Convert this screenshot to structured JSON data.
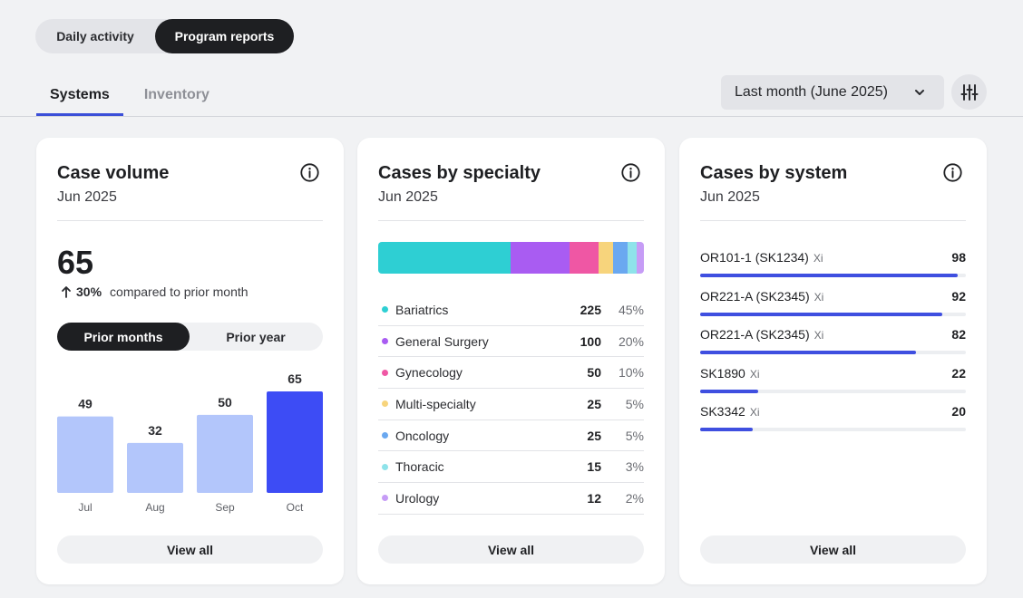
{
  "view_toggle": {
    "options": [
      "Daily activity",
      "Program reports"
    ],
    "selected": "Program reports"
  },
  "tabs": [
    {
      "label": "Systems",
      "active": true
    },
    {
      "label": "Inventory",
      "active": false
    }
  ],
  "date_filter": {
    "value": "Last month (June 2025)"
  },
  "icons": {
    "dropdown": "chevron-down-icon",
    "filter": "sliders-icon",
    "info": "info-icon",
    "delta": "arrow-up-icon"
  },
  "colors": {
    "accent": "#3b4fd8",
    "bar_current": "#3d4cf5",
    "bar_prior": "#b3c6fb"
  },
  "case_volume": {
    "title": "Case volume",
    "subtitle": "Jun 2025",
    "value": "65",
    "delta_pct": "30%",
    "delta_text": "compared to prior month",
    "toggle": {
      "options": [
        "Prior months",
        "Prior year"
      ],
      "selected": "Prior months"
    },
    "view_all": "View all"
  },
  "chart_data": {
    "type": "bar",
    "categories": [
      "Jul",
      "Aug",
      "Sep",
      "Oct"
    ],
    "values": [
      49,
      32,
      50,
      65
    ],
    "highlight_index": 3,
    "ylim": [
      0,
      65
    ]
  },
  "cases_by_specialty": {
    "title": "Cases by specialty",
    "subtitle": "Jun 2025",
    "items": [
      {
        "name": "Bariatrics",
        "count": "225",
        "pct": "45%",
        "color": "#2ecfd3"
      },
      {
        "name": "General Surgery",
        "count": "100",
        "pct": "20%",
        "color": "#a95cf2"
      },
      {
        "name": "Gynecology",
        "count": "50",
        "pct": "10%",
        "color": "#ef57a4"
      },
      {
        "name": "Multi-specialty",
        "count": "25",
        "pct": "5%",
        "color": "#f7d47c"
      },
      {
        "name": "Oncology",
        "count": "25",
        "pct": "5%",
        "color": "#6aa8f0"
      },
      {
        "name": "Thoracic",
        "count": "15",
        "pct": "3%",
        "color": "#8ee3ea"
      },
      {
        "name": "Urology",
        "count": "12",
        "pct": "2%",
        "color": "#c69cf6"
      }
    ],
    "view_all": "View all"
  },
  "cases_by_system": {
    "title": "Cases by system",
    "subtitle": "Jun 2025",
    "max": 98,
    "items": [
      {
        "name": "OR101-1 (SK1234)",
        "model": "Xi",
        "value": "98",
        "num": 98
      },
      {
        "name": "OR221-A (SK2345)",
        "model": "Xi",
        "value": "92",
        "num": 92
      },
      {
        "name": "OR221-A (SK2345)",
        "model": "Xi",
        "value": "82",
        "num": 82
      },
      {
        "name": "SK1890",
        "model": "Xi",
        "value": "22",
        "num": 22
      },
      {
        "name": "SK3342",
        "model": "Xi",
        "value": "20",
        "num": 20
      }
    ],
    "bar_color": "#3f4fe0",
    "view_all": "View all"
  }
}
